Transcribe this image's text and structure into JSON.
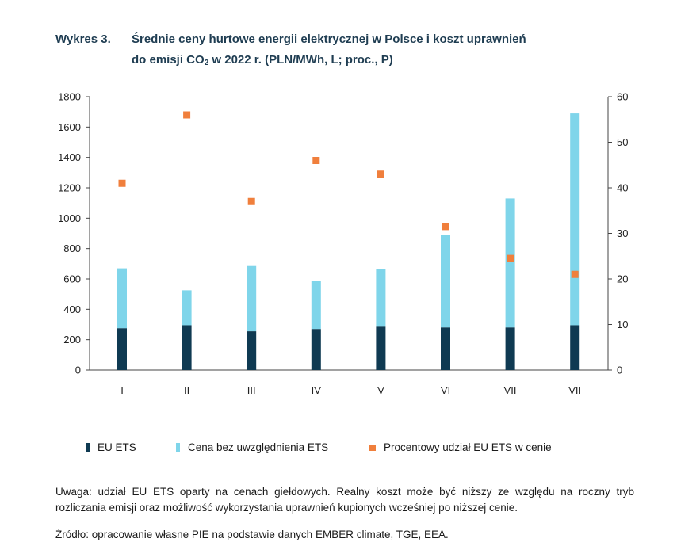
{
  "title": {
    "label": "Wykres 3.",
    "line1": "Średnie ceny hurtowe energii elektrycznej w Polsce i koszt uprawnień",
    "line2_pre": "do emisji CO",
    "line2_sub": "2",
    "line2_post": " w 2022 r. (PLN/MWh, L; proc., P)"
  },
  "chart_data": {
    "type": "bar",
    "stacked": true,
    "categories": [
      "I",
      "II",
      "III",
      "IV",
      "V",
      "VI",
      "VII",
      "VII"
    ],
    "series": [
      {
        "name": "EU ETS",
        "axis": "left",
        "color": "#0f3a52",
        "values": [
          275,
          295,
          255,
          270,
          285,
          280,
          280,
          295
        ]
      },
      {
        "name": "Cena bez uwzględnienia ETS",
        "axis": "left",
        "color": "#7fd5ea",
        "values": [
          395,
          230,
          430,
          315,
          380,
          610,
          850,
          1395
        ]
      },
      {
        "name": "Procentowy udział EU ETS w cenie",
        "axis": "right",
        "type": "scatter",
        "color": "#f07f3c",
        "values": [
          41,
          56,
          37,
          46,
          43,
          31.5,
          24.5,
          21
        ]
      }
    ],
    "left_axis": {
      "min": 0,
      "max": 1800,
      "ticks": [
        "0",
        "200",
        "400",
        "600",
        "800",
        "1000",
        "1200",
        "1400",
        "1600",
        "1800"
      ]
    },
    "right_axis": {
      "min": 0,
      "max": 60,
      "ticks": [
        "0",
        "10",
        "20",
        "30",
        "40",
        "50",
        "60"
      ]
    },
    "grid": false,
    "legend_position": "bottom"
  },
  "legend": [
    {
      "label": "EU ETS",
      "color": "#0f3a52",
      "shape": "bar"
    },
    {
      "label": "Cena bez uwzględnienia ETS",
      "color": "#7fd5ea",
      "shape": "bar"
    },
    {
      "label": "Procentowy udział EU ETS w cenie",
      "color": "#f07f3c",
      "shape": "square"
    }
  ],
  "note": "Uwaga: udział EU ETS oparty na cenach giełdowych. Realny koszt może być niższy ze względu na roczny tryb rozliczania emisji oraz możliwość wykorzystania uprawnień kupionych wcześniej po niższej cenie.",
  "source": "Źródło: opracowanie własne PIE na podstawie danych EMBER climate, TGE, EEA."
}
